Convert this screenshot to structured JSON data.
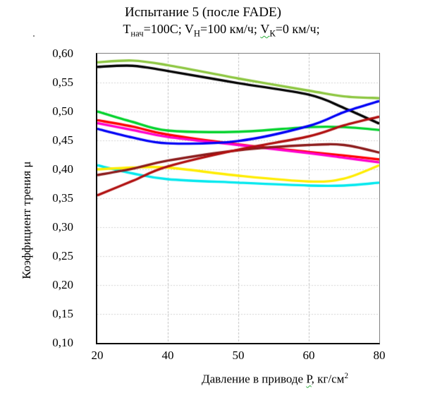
{
  "title": "Испытание 5 (после FADE)",
  "subtitle": {
    "seg1_base": "Т",
    "seg1_sub": "нач",
    "seg1_rest": "=100C; ",
    "seg2_base": "V",
    "seg2_sub": "Н",
    "seg2_rest": "=100 км/ч; ",
    "seg3_base": "V",
    "seg3_sub": "К",
    "seg3_rest": "=0 км/ч;"
  },
  "axes": {
    "y_label": "Коэффициент трения  μ",
    "x_label_prefix": "Давление в приводе ",
    "x_label_p": "Р",
    "x_label_mid": ", кг/см",
    "x_label_sup": "2",
    "y_tick_labels": [
      "0,60",
      "0,55",
      "0,50",
      "0,45",
      "0,40",
      "0,35",
      "0,30",
      "0,25",
      "0,20",
      "0,15",
      "0,10"
    ],
    "x_tick_labels": [
      "20",
      "40",
      "50",
      "60",
      "80"
    ]
  },
  "colors": {
    "grid_h": "#d4d4d4",
    "grid_v": "#c0c0c0",
    "axis": "#000000",
    "frame": "#7f7f7f",
    "spellcheck": "#2eae3c"
  },
  "chart_data": {
    "type": "line",
    "title": "Испытание 5 (после FADE); Тнач=100C; Vн=100 км/ч; Vк=0 км/ч",
    "xlabel": "Давление в приводе Р, кг/см2",
    "ylabel": "Коэффициент трения μ",
    "x": [
      20,
      30,
      40,
      50,
      60,
      70,
      80
    ],
    "x_axis_tick_values": [
      20,
      40,
      50,
      60,
      80
    ],
    "x_axis_note": "labeled ticks 20/40/50/60/80 are equally spaced (non-linear category-like scale)",
    "ylim": [
      0.1,
      0.6
    ],
    "y_step": 0.05,
    "grid": true,
    "legend_position": "none",
    "line_width": 3.4,
    "series": [
      {
        "name": "line-yellow-green",
        "color": "#8cc63f",
        "values": [
          0.585,
          0.588,
          0.58,
          0.557,
          0.536,
          0.526,
          0.523
        ]
      },
      {
        "name": "line-black",
        "color": "#000000",
        "values": [
          0.577,
          0.579,
          0.57,
          0.549,
          0.529,
          0.506,
          0.479
        ]
      },
      {
        "name": "line-green",
        "color": "#00d22b",
        "values": [
          0.5,
          0.482,
          0.467,
          0.465,
          0.473,
          0.473,
          0.468
        ]
      },
      {
        "name": "line-red",
        "color": "#fe0000",
        "values": [
          0.485,
          0.474,
          0.46,
          0.443,
          0.43,
          0.424,
          0.417
        ]
      },
      {
        "name": "line-magenta",
        "color": "#ff00cc",
        "values": [
          0.48,
          0.468,
          0.456,
          0.442,
          0.428,
          0.42,
          0.412
        ]
      },
      {
        "name": "line-cyan",
        "color": "#00e8ee",
        "values": [
          0.407,
          0.393,
          0.383,
          0.377,
          0.372,
          0.372,
          0.377
        ]
      },
      {
        "name": "line-yellow",
        "color": "#ffec00",
        "values": [
          0.4,
          0.403,
          0.403,
          0.389,
          0.379,
          0.384,
          0.407
        ]
      },
      {
        "name": "line-dark-red",
        "color": "#8b1a1a",
        "values": [
          0.39,
          0.401,
          0.415,
          0.433,
          0.442,
          0.442,
          0.429
        ]
      },
      {
        "name": "line-brick-red",
        "color": "#b01010",
        "values": [
          0.355,
          0.38,
          0.405,
          0.434,
          0.457,
          0.476,
          0.491
        ]
      },
      {
        "name": "line-blue",
        "color": "#0000f5",
        "values": [
          0.47,
          0.455,
          0.445,
          0.449,
          0.475,
          0.499,
          0.518
        ]
      }
    ]
  }
}
